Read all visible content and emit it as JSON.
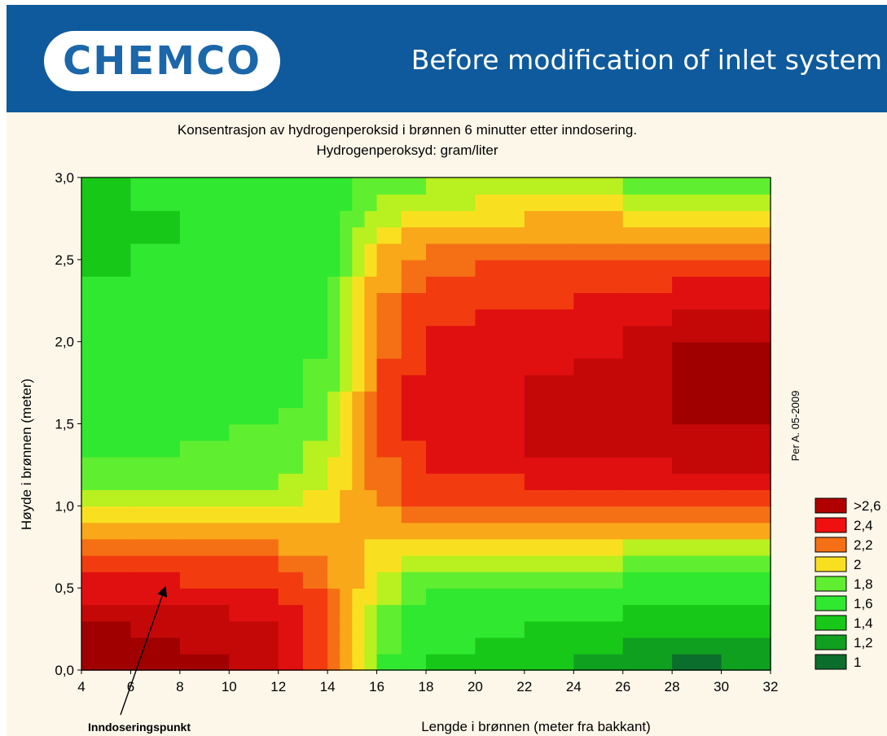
{
  "header": {
    "logo_text": "CHEMCO",
    "title": "Before modification of inlet system",
    "background": "#0e5a9c"
  },
  "chart_data": {
    "type": "contour",
    "title": "Konsentrasjon av hydrogenperoksid i brønnen 6 minutter etter inndosering.",
    "subtitle": "Hydrogenperoksyd: gram/liter",
    "xlabel": "Lengde i brønnen (meter fra bakkant)",
    "ylabel": "Høyde i brønnen (meter)",
    "xlim": [
      4,
      32
    ],
    "ylim": [
      0.0,
      3.0
    ],
    "xticks": [
      "4",
      "6",
      "8",
      "10",
      "12",
      "14",
      "16",
      "18",
      "20",
      "22",
      "24",
      "26",
      "28",
      "30",
      "32"
    ],
    "yticks": [
      "0,0",
      "0,5",
      "1,0",
      "1,5",
      "2,0",
      "2,5",
      "3,0"
    ],
    "legend_position": "right",
    "legend": [
      {
        "label": ">2,6",
        "color": "#b00000"
      },
      {
        "label": "2,4",
        "color": "#f01010"
      },
      {
        "label": "2,2",
        "color": "#f57015"
      },
      {
        "label": "2",
        "color": "#f8e020"
      },
      {
        "label": "1,8",
        "color": "#60ee30"
      },
      {
        "label": "1,6",
        "color": "#30e830"
      },
      {
        "label": "1,4",
        "color": "#18c818"
      },
      {
        "label": "1,2",
        "color": "#10a020"
      },
      {
        "label": "1",
        "color": "#0c6e2c"
      }
    ],
    "color_levels": [
      {
        "level": 1.2,
        "color": "#0c6e2c"
      },
      {
        "level": 1.4,
        "color": "#10a020"
      },
      {
        "level": 1.6,
        "color": "#18c818"
      },
      {
        "level": 1.8,
        "color": "#30e830"
      },
      {
        "level": 1.9,
        "color": "#60ee30"
      },
      {
        "level": 2.0,
        "color": "#b8f020"
      },
      {
        "level": 2.1,
        "color": "#f8e020"
      },
      {
        "level": 2.2,
        "color": "#f8a818"
      },
      {
        "level": 2.3,
        "color": "#f57015"
      },
      {
        "level": 2.45,
        "color": "#f23c10"
      },
      {
        "level": 2.6,
        "color": "#e01010"
      },
      {
        "level": 2.75,
        "color": "#c40808"
      },
      {
        "level": 99,
        "color": "#a00000"
      }
    ],
    "x_grid": [
      4,
      6,
      8,
      10,
      12,
      13,
      14,
      14.5,
      15,
      15.5,
      16,
      17,
      18,
      20,
      22,
      24,
      26,
      28,
      30,
      32
    ],
    "y_grid": [
      0.0,
      0.1,
      0.2,
      0.3,
      0.4,
      0.5,
      0.6,
      0.7,
      0.8,
      0.9,
      1.0,
      1.1,
      1.2,
      1.3,
      1.4,
      1.5,
      1.6,
      1.7,
      1.8,
      1.9,
      2.0,
      2.1,
      2.2,
      2.3,
      2.4,
      2.5,
      2.6,
      2.7,
      2.8,
      2.9,
      3.0
    ],
    "z_anchor": {
      "x": [
        4,
        8,
        12,
        14,
        15,
        16,
        18,
        22,
        26,
        29,
        32
      ],
      "y": [
        0.0,
        0.3,
        0.6,
        0.8,
        1.0,
        1.3,
        1.7,
        2.0,
        2.4,
        2.7,
        3.0
      ],
      "z": [
        [
          2.95,
          2.85,
          2.6,
          2.3,
          2.1,
          1.85,
          1.55,
          1.45,
          1.3,
          1.15,
          1.2
        ],
        [
          2.75,
          2.7,
          2.55,
          2.3,
          2.15,
          1.9,
          1.7,
          1.6,
          1.55,
          1.45,
          1.45
        ],
        [
          2.45,
          2.4,
          2.35,
          2.2,
          2.15,
          2.0,
          1.9,
          1.85,
          1.85,
          1.8,
          1.8
        ],
        [
          2.15,
          2.15,
          2.15,
          2.15,
          2.15,
          2.1,
          2.1,
          2.05,
          2.05,
          2.05,
          2.05
        ],
        [
          1.95,
          1.95,
          1.95,
          2.05,
          2.15,
          2.2,
          2.3,
          2.3,
          2.3,
          2.35,
          2.3
        ],
        [
          1.8,
          1.8,
          1.85,
          1.95,
          2.1,
          2.25,
          2.5,
          2.6,
          2.6,
          2.7,
          2.65
        ],
        [
          1.7,
          1.7,
          1.75,
          1.85,
          2.05,
          2.25,
          2.55,
          2.6,
          2.65,
          2.8,
          2.8
        ],
        [
          1.65,
          1.65,
          1.7,
          1.8,
          2.0,
          2.2,
          2.5,
          2.55,
          2.6,
          2.75,
          2.75
        ],
        [
          1.6,
          1.65,
          1.65,
          1.75,
          1.95,
          2.15,
          2.3,
          2.35,
          2.4,
          2.45,
          2.4
        ],
        [
          1.45,
          1.6,
          1.65,
          1.7,
          1.85,
          2.0,
          2.1,
          2.15,
          2.15,
          2.1,
          2.1
        ],
        [
          1.5,
          1.7,
          1.7,
          1.7,
          1.8,
          1.8,
          1.85,
          1.9,
          1.85,
          1.85,
          1.85
        ]
      ]
    },
    "annotations": [
      {
        "text": "Inndoseringspunkt",
        "points_to": [
          7.5,
          0.35
        ]
      },
      {
        "text": "Per A. 05-2009"
      }
    ]
  }
}
